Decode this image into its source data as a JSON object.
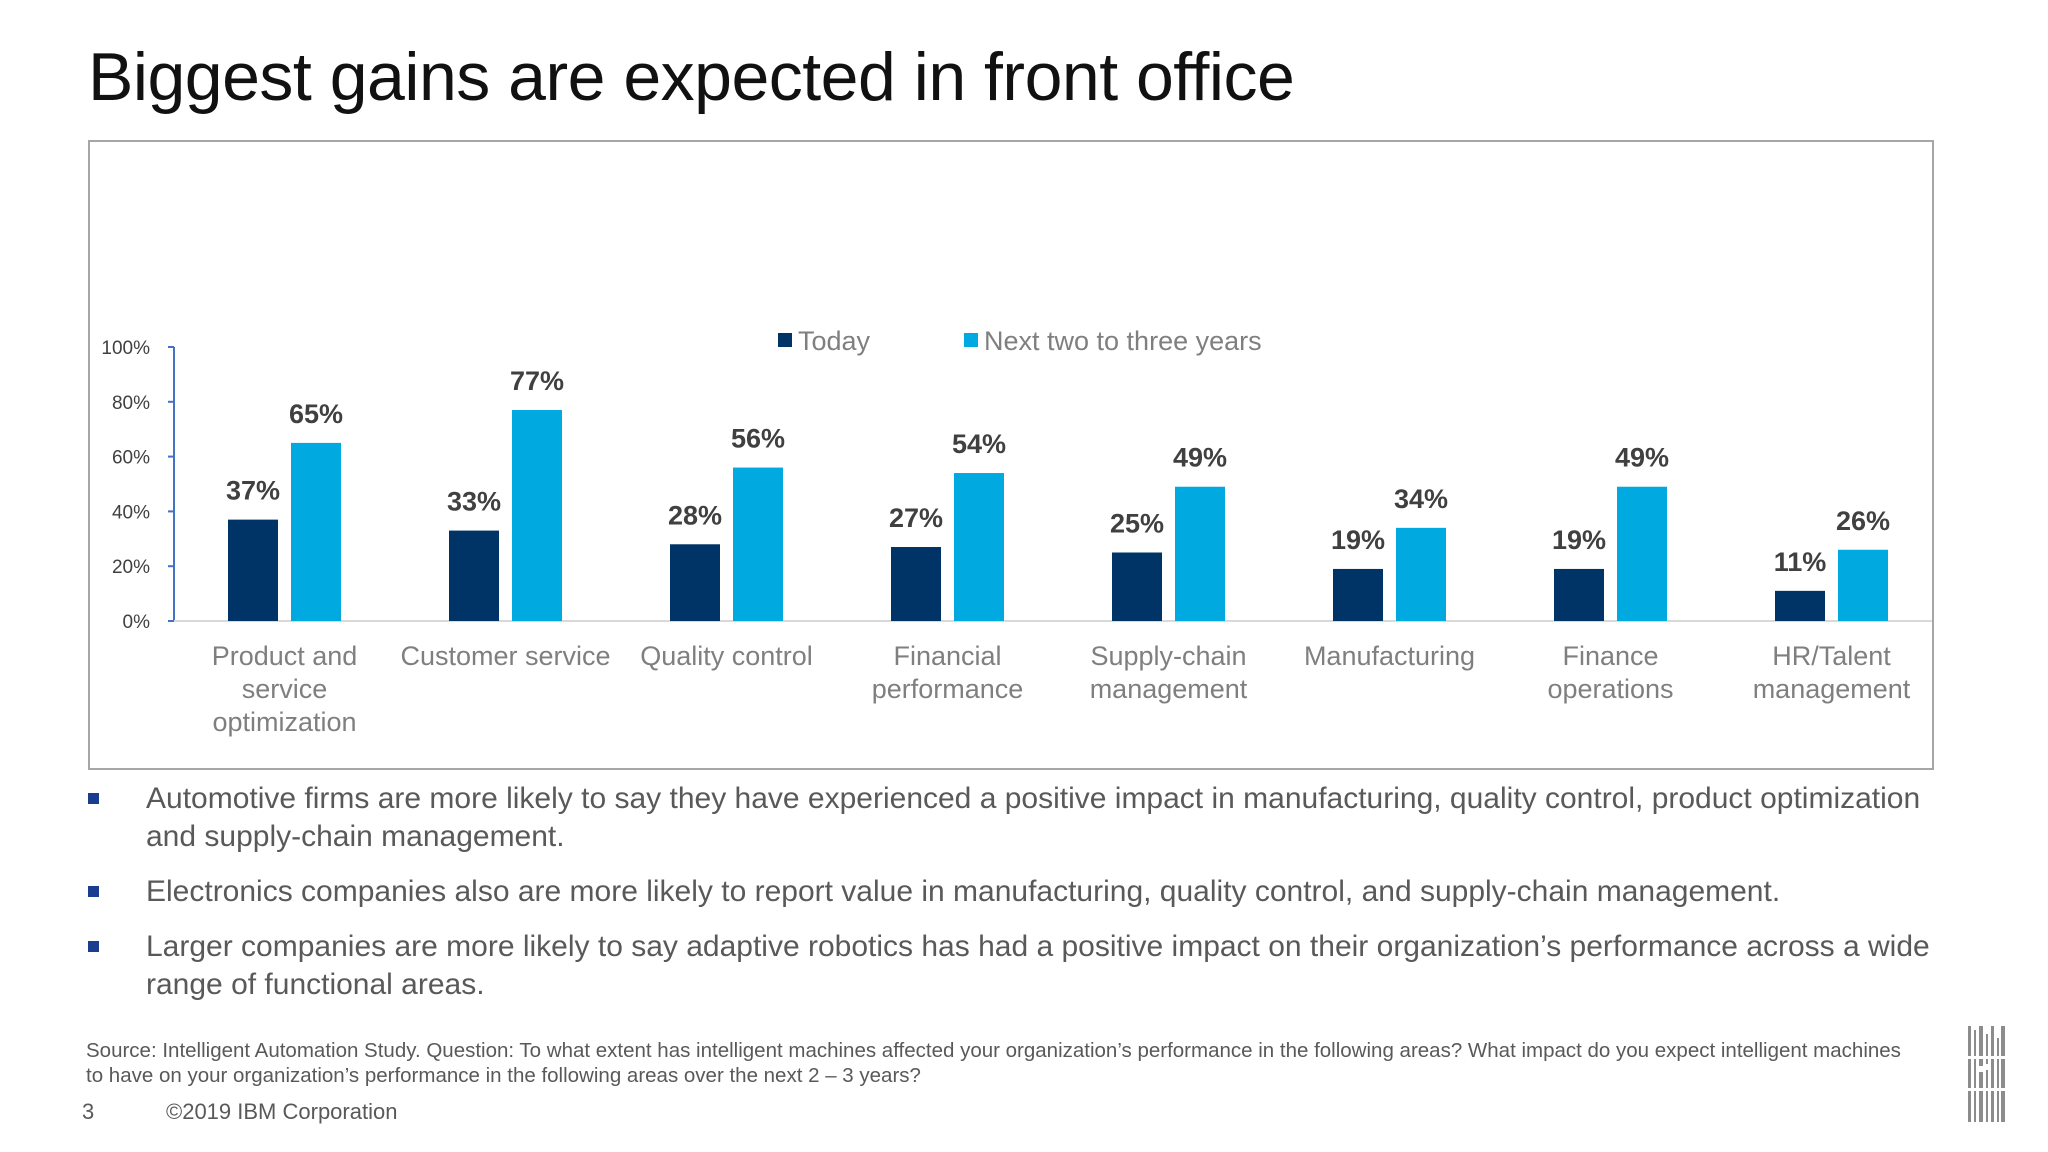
{
  "title": "Biggest gains are expected in front office",
  "chart_data": {
    "type": "bar",
    "categories": [
      "Product and service optimization",
      "Customer service",
      "Quality control",
      "Financial performance",
      "Supply-chain management",
      "Manufacturing",
      "Finance operations",
      "HR/Talent management"
    ],
    "category_lines": [
      [
        "Product and",
        "service",
        "optimization"
      ],
      [
        "Customer service"
      ],
      [
        "Quality control"
      ],
      [
        "Financial",
        "performance"
      ],
      [
        "Supply-chain",
        "management"
      ],
      [
        "Manufacturing"
      ],
      [
        "Finance",
        "operations"
      ],
      [
        "HR/Talent",
        "management"
      ]
    ],
    "series": [
      {
        "name": "Today",
        "color": "#003366",
        "values": [
          37,
          33,
          28,
          27,
          25,
          19,
          19,
          11
        ],
        "labels": [
          "37%",
          "33%",
          "28%",
          "27%",
          "25%",
          "19%",
          "19%",
          "11%"
        ]
      },
      {
        "name": "Next two to three years",
        "color": "#00a9e0",
        "values": [
          65,
          77,
          56,
          54,
          49,
          34,
          49,
          26
        ],
        "labels": [
          "65%",
          "77%",
          "56%",
          "54%",
          "49%",
          "34%",
          "49%",
          "26%"
        ]
      }
    ],
    "ylim": [
      0,
      100
    ],
    "yticks": [
      0,
      20,
      40,
      60,
      80,
      100
    ],
    "ytick_labels": [
      "0%",
      "20%",
      "40%",
      "60%",
      "80%",
      "100%"
    ],
    "legend_position": "top-center",
    "grid": false
  },
  "bullets": [
    "Automotive firms are more likely to say they have experienced a positive impact in manufacturing, quality control, product optimization and supply-chain management.",
    "Electronics companies also are more likely to report value in manufacturing, quality control, and supply-chain management.",
    "Larger companies are more likely to say adaptive robotics has had a positive impact on their organization’s performance across a wide range of functional areas."
  ],
  "source_text": "Source: Intelligent Automation Study.  Question:  To what extent has intelligent machines affected your organization’s performance in the following areas?  What impact do you expect intelligent machines to have on your organization’s performance in the following areas over the next 2 – 3 years?",
  "footer": {
    "page_number": "3",
    "copyright": "©2019 IBM Corporation"
  },
  "logo_text": "IBM",
  "colors": {
    "today": "#003366",
    "future": "#00a9e0",
    "bullet_marker": "#1a3d8f",
    "text_gray": "#595959"
  }
}
